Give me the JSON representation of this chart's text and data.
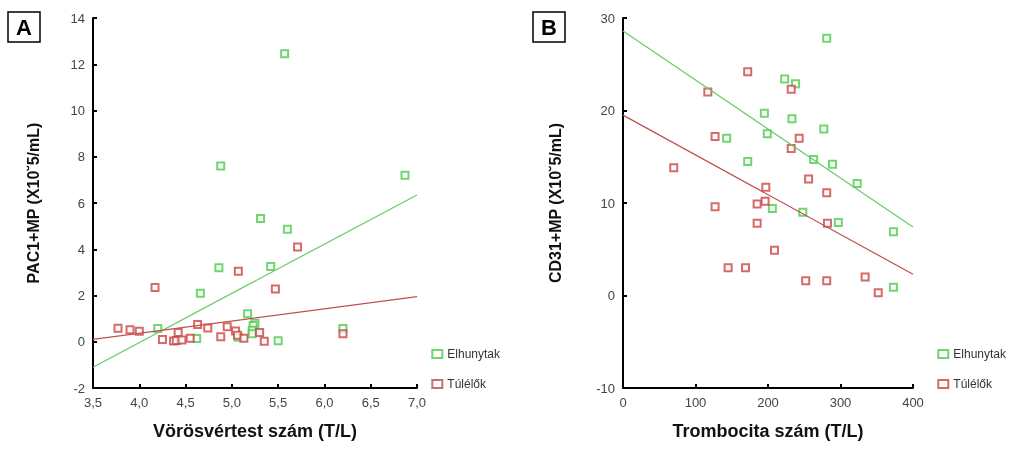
{
  "chart_data": [
    {
      "type": "scatter",
      "title": "A",
      "xlabel": "Vörösvértest szám (T/L)",
      "ylabel": "PAC1+MP (X10˘5/mL)",
      "marker": "square",
      "legend": "bottom right",
      "grid": false,
      "xlim": [
        3.5,
        7.0
      ],
      "xticks": [
        {
          "value": 3.5,
          "label": "3,5"
        },
        {
          "value": 4.0,
          "label": "4,0"
        },
        {
          "value": 4.5,
          "label": "4,5"
        },
        {
          "value": 5.0,
          "label": "5,0"
        },
        {
          "value": 5.5,
          "label": "5,5"
        },
        {
          "value": 6.0,
          "label": "6,0"
        },
        {
          "value": 6.5,
          "label": "6,5"
        },
        {
          "value": 7.0,
          "label": "7,0"
        }
      ],
      "ylim": [
        -2,
        14
      ],
      "yticks": [
        -2,
        0,
        2,
        4,
        6,
        8,
        10,
        12,
        14
      ],
      "series": [
        {
          "name": "Elhunytak",
          "color": "#4ccc4c",
          "x": [
            5.57,
            4.88,
            6.87,
            5.31,
            5.6,
            4.86,
            5.42,
            4.66,
            5.17,
            5.25,
            5.23,
            5.22,
            5.22,
            4.2,
            4.62,
            5.07,
            5.5,
            6.2
          ],
          "values": [
            12.45,
            7.6,
            7.2,
            5.33,
            4.86,
            3.2,
            3.25,
            2.1,
            1.21,
            0.8,
            0.7,
            0.5,
            0.35,
            0.57,
            0.14,
            0.2,
            0.04,
            0.57
          ]
        },
        {
          "name": "Túlélők",
          "color": "#cc4444",
          "x": [
            3.77,
            3.9,
            4.0,
            4.17,
            4.25,
            4.37,
            4.4,
            4.42,
            4.46,
            4.55,
            4.63,
            4.74,
            4.88,
            4.95,
            5.04,
            5.06,
            5.07,
            5.13,
            5.3,
            5.35,
            5.47,
            5.71,
            6.2
          ],
          "values": [
            0.58,
            0.52,
            0.45,
            2.35,
            0.1,
            0.03,
            0.05,
            0.4,
            0.08,
            0.15,
            0.75,
            0.6,
            0.22,
            0.65,
            0.47,
            0.28,
            3.05,
            0.15,
            0.4,
            0.02,
            2.28,
            4.1,
            0.35
          ]
        },
        {
          "type": "line",
          "marker": "none",
          "color": "#66cc66",
          "x": [
            3.5,
            7.0
          ],
          "values": [
            -1.1,
            6.35
          ]
        },
        {
          "type": "line",
          "marker": "none",
          "color": "#c05050",
          "x": [
            3.5,
            7.0
          ],
          "values": [
            0.1,
            1.95
          ]
        }
      ]
    },
    {
      "type": "scatter",
      "title": "B",
      "xlabel": "Trombocita szám (T/L)",
      "ylabel": "CD31+MP (X10˘5/mL)",
      "marker": "square",
      "legend": "bottom right",
      "grid": false,
      "xlim": [
        0,
        400
      ],
      "xticks": [
        0,
        100,
        200,
        300,
        400
      ],
      "ylim": [
        -10,
        30
      ],
      "yticks": [
        -10,
        0,
        10,
        20,
        30
      ],
      "series": [
        {
          "name": "Elhunytak",
          "color": "#4ccc4c",
          "x": [
            281,
            223,
            238,
            195,
            233,
            277,
            199,
            143,
            172,
            263,
            289,
            323,
            206,
            248,
            297,
            373,
            373
          ],
          "values": [
            27.8,
            23.4,
            22.9,
            19.7,
            19.1,
            18.0,
            17.5,
            17.0,
            14.5,
            14.7,
            14.2,
            12.1,
            9.4,
            9.0,
            7.9,
            6.9,
            0.9
          ]
        },
        {
          "name": "Túlélők",
          "color": "#cc4444",
          "x": [
            172,
            117,
            232,
            127,
            243,
            232,
            70,
            256,
            197,
            281,
            196,
            185,
            127,
            185,
            282,
            209,
            145,
            169,
            252,
            281,
            334,
            352
          ],
          "values": [
            24.2,
            22.0,
            22.3,
            17.2,
            17.0,
            15.9,
            13.8,
            12.6,
            11.7,
            11.1,
            10.2,
            9.9,
            9.6,
            7.8,
            7.8,
            4.9,
            3.0,
            3.0,
            1.6,
            1.6,
            2.0,
            0.3
          ]
        },
        {
          "type": "line",
          "marker": "none",
          "color": "#66cc66",
          "x": [
            0,
            400
          ],
          "values": [
            28.6,
            7.4
          ]
        },
        {
          "type": "line",
          "marker": "none",
          "color": "#c05050",
          "x": [
            0,
            400
          ],
          "values": [
            19.5,
            2.3
          ]
        }
      ]
    }
  ]
}
